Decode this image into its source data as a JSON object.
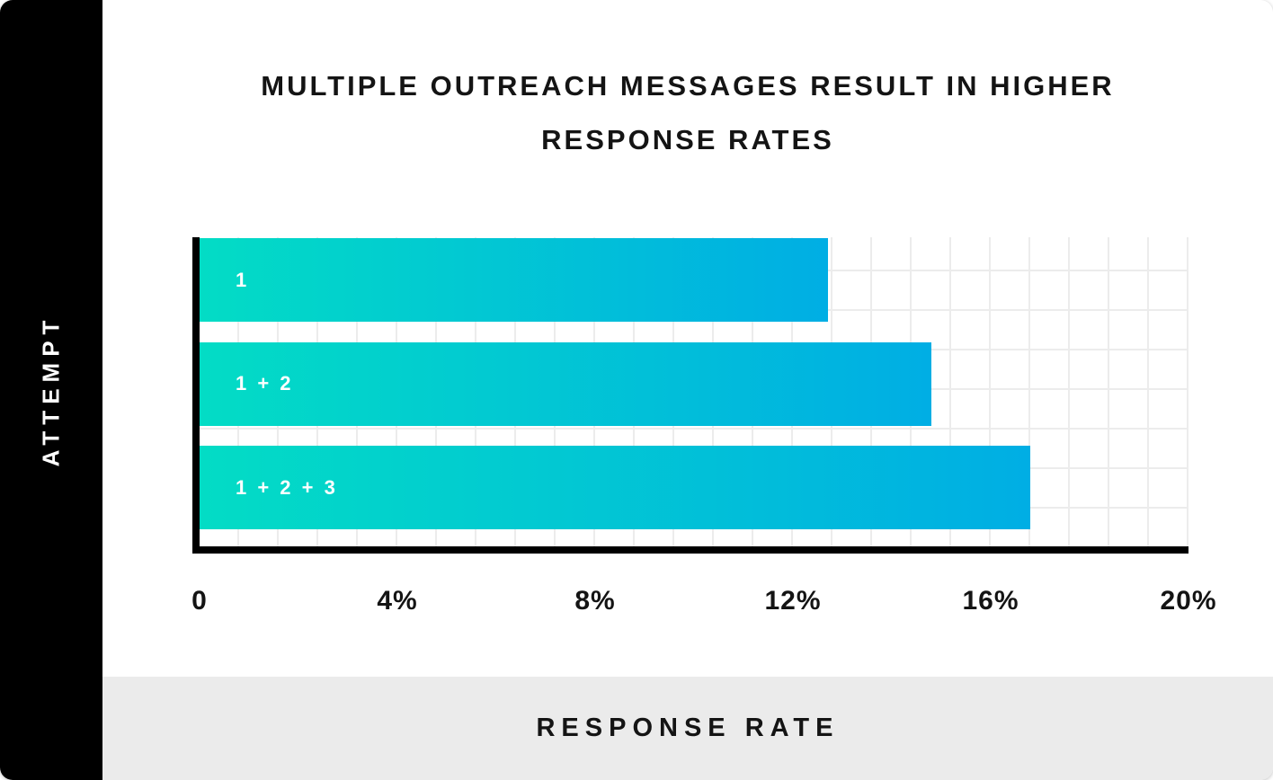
{
  "chart_data": {
    "type": "bar",
    "orientation": "horizontal",
    "title": "MULTIPLE OUTREACH MESSAGES RESULT IN HIGHER RESPONSE RATES",
    "title_lines": [
      "MULTIPLE OUTREACH MESSAGES RESULT IN HIGHER",
      "RESPONSE RATES"
    ],
    "ylabel": "ATTEMPT",
    "xlabel": "RESPONSE RATE",
    "categories": [
      "1",
      "1 + 2",
      "1 + 2 + 3"
    ],
    "values": [
      12.7,
      14.8,
      16.8
    ],
    "unit": "%",
    "xlim": [
      0,
      20
    ],
    "x_ticks": [
      {
        "value": 0,
        "label": "0"
      },
      {
        "value": 4,
        "label": "4%"
      },
      {
        "value": 8,
        "label": "8%"
      },
      {
        "value": 12,
        "label": "12%"
      },
      {
        "value": 16,
        "label": "16%"
      },
      {
        "value": 20,
        "label": "20%"
      }
    ],
    "grid": true,
    "legend": false,
    "colors": {
      "bar_gradient_start": "#03dcc5",
      "bar_gradient_end": "#00aee4",
      "gridline": "#ececec",
      "axis": "#000000",
      "y_band_background": "#000000",
      "y_band_text": "#ffffff",
      "x_band_background": "#ebebeb",
      "text": "#141414"
    }
  }
}
